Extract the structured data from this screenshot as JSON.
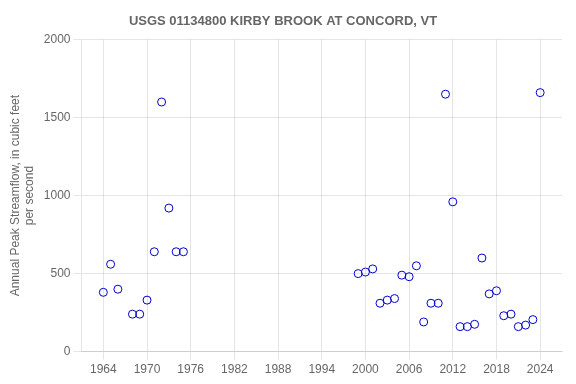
{
  "chart_data": {
    "type": "scatter",
    "title": "USGS 01134800 KIRBY BROOK AT CONCORD, VT",
    "ylabel": "Annual Peak Streamflow, in cubic feet\nper second",
    "x": [
      1964,
      1965,
      1966,
      1968,
      1969,
      1970,
      1971,
      1972,
      1973,
      1974,
      1975,
      1999,
      2000,
      2001,
      2002,
      2003,
      2004,
      2005,
      2006,
      2007,
      2008,
      2009,
      2010,
      2011,
      2012,
      2013,
      2014,
      2015,
      2016,
      2017,
      2018,
      2019,
      2020,
      2021,
      2022,
      2023,
      2024
    ],
    "values": [
      380,
      560,
      400,
      240,
      240,
      330,
      640,
      1600,
      920,
      640,
      640,
      500,
      510,
      530,
      310,
      330,
      340,
      490,
      480,
      550,
      190,
      310,
      310,
      1650,
      960,
      160,
      160,
      175,
      600,
      370,
      390,
      230,
      240,
      160,
      170,
      205,
      1660
    ],
    "color": "#0000cc",
    "marker": "circle",
    "xlim": [
      1961,
      2027
    ],
    "ylim": [
      0,
      2000
    ],
    "xticks": [
      1964,
      1970,
      1976,
      1982,
      1988,
      1994,
      2000,
      2006,
      2012,
      2018,
      2024
    ],
    "yticks": [
      0,
      500,
      1000,
      1500,
      2000
    ],
    "grid": true
  }
}
